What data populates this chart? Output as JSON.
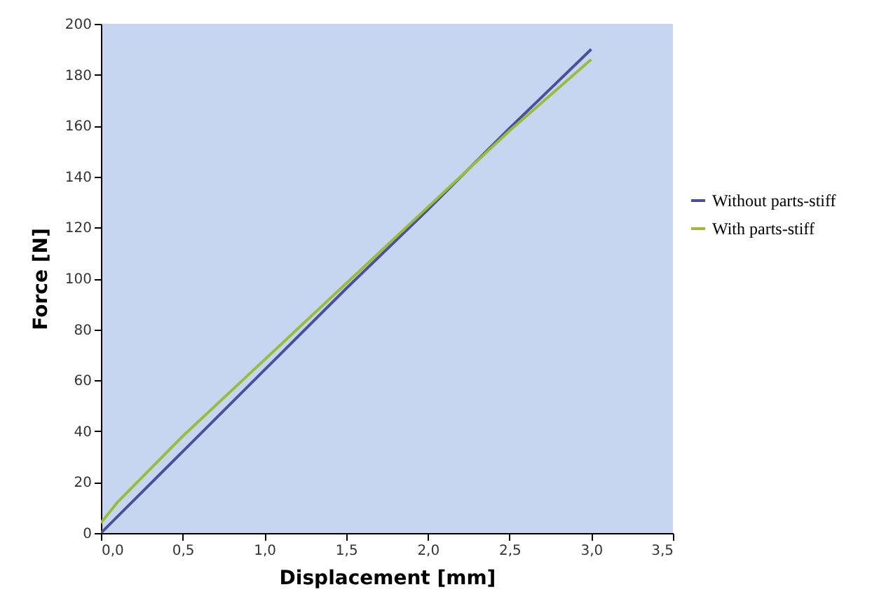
{
  "chart_data": {
    "type": "line",
    "xlabel": "Displacement [mm]",
    "ylabel": "Force [N]",
    "series": [
      {
        "name": "Without parts-stiff",
        "color": "#4b4f9e",
        "x": [
          0,
          0.5,
          1.0,
          1.5,
          2.0,
          2.5,
          3.0
        ],
        "values": [
          0,
          32,
          64,
          96,
          127,
          159,
          190
        ]
      },
      {
        "name": "With parts-stiff",
        "color": "#9bbb3b",
        "x": [
          0,
          0.1,
          0.5,
          1.0,
          1.5,
          2.0,
          2.5,
          3.0
        ],
        "values": [
          4,
          12,
          38,
          68,
          98,
          128,
          158,
          186
        ]
      }
    ],
    "xlim": [
      0,
      3.5
    ],
    "xticks": [
      {
        "value": 0,
        "label": "0,0"
      },
      {
        "value": 0.5,
        "label": "0,5"
      },
      {
        "value": 1,
        "label": "1,0"
      },
      {
        "value": 1.5,
        "label": "1,5"
      },
      {
        "value": 2,
        "label": "2,0"
      },
      {
        "value": 2.5,
        "label": "2,5"
      },
      {
        "value": 3,
        "label": "3,0"
      },
      {
        "value": 3.5,
        "label": "3,5"
      }
    ],
    "ylim": [
      0,
      200
    ],
    "yticks": [
      0,
      20,
      40,
      60,
      80,
      100,
      120,
      140,
      160,
      180,
      200
    ],
    "legend": "right",
    "grid": false,
    "line_style": "solid",
    "marker": "none"
  }
}
